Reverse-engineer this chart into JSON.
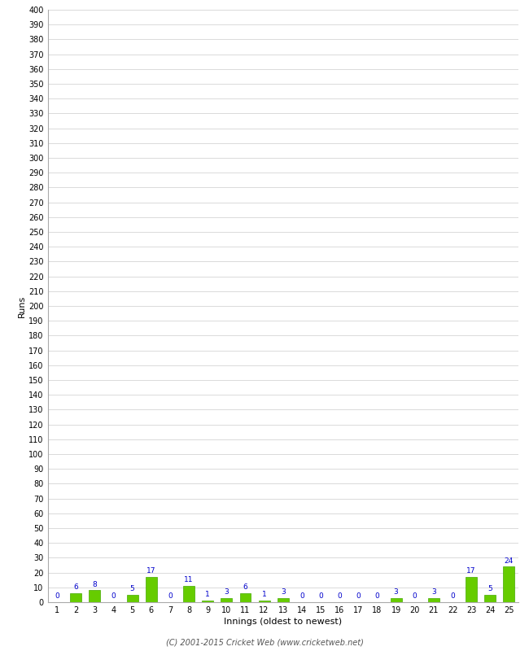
{
  "title": "",
  "xlabel": "Innings (oldest to newest)",
  "ylabel": "Runs",
  "innings": [
    1,
    2,
    3,
    4,
    5,
    6,
    7,
    8,
    9,
    10,
    11,
    12,
    13,
    14,
    15,
    16,
    17,
    18,
    19,
    20,
    21,
    22,
    23,
    24,
    25
  ],
  "values": [
    0,
    6,
    8,
    0,
    5,
    17,
    0,
    11,
    1,
    3,
    6,
    1,
    3,
    0,
    0,
    0,
    0,
    0,
    3,
    0,
    3,
    0,
    17,
    5,
    24
  ],
  "bar_color": "#66cc00",
  "bar_edge_color": "#44aa00",
  "label_color": "#0000cc",
  "background_color": "#ffffff",
  "grid_color": "#cccccc",
  "ylim": [
    0,
    400
  ],
  "ytick_step": 10,
  "axis_label_fontsize": 8,
  "tick_fontsize": 7,
  "value_label_fontsize": 6.5,
  "footer_text": "(C) 2001-2015 Cricket Web (www.cricketweb.net)"
}
